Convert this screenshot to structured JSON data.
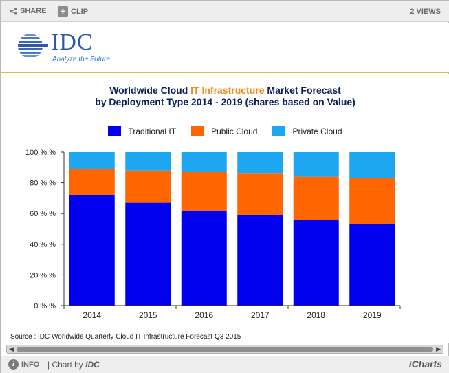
{
  "toolbar": {
    "share_label": "SHARE",
    "clip_label": "CLIP",
    "views_label": "2 VIEWS",
    "share_icon": "share-icon",
    "clip_icon": "plus-icon"
  },
  "logo": {
    "word": "IDC",
    "tagline": "Analyze the Future"
  },
  "chart": {
    "title_line1_pre": "Worldwide Cloud ",
    "title_line1_accent": "IT Infrastructure",
    "title_line1_post": " Market Forecast",
    "title_line2": "by Deployment Type  2014 - 2019 (shares based on Value)",
    "source": "Source : IDC Worldwide Quarterly Cloud IT Infrastructure Forecast Q3 2015"
  },
  "colors": {
    "traditional": "#0000ee",
    "public": "#ff6600",
    "private": "#1ea7f0",
    "title": "#0a1f5c",
    "title_accent": "#f08a1c"
  },
  "chart_data": {
    "type": "bar",
    "stacked": true,
    "title": "Worldwide Cloud IT Infrastructure Market Forecast by Deployment Type  2014 - 2019 (shares based on Value)",
    "categories": [
      "2014",
      "2015",
      "2016",
      "2017",
      "2018",
      "2019"
    ],
    "series": [
      {
        "name": "Traditional IT",
        "color": "#0000ee",
        "values": [
          72,
          67,
          62,
          59,
          56,
          53
        ]
      },
      {
        "name": "Public Cloud",
        "color": "#ff6600",
        "values": [
          17,
          21,
          25,
          27,
          28,
          30
        ]
      },
      {
        "name": "Private Cloud",
        "color": "#1ea7f0",
        "values": [
          11,
          12,
          13,
          14,
          16,
          17
        ]
      }
    ],
    "yticks": [
      "0 % %",
      "20 % %",
      "40 % %",
      "60 % %",
      "80 % %",
      "100 % %"
    ],
    "ylim": [
      0,
      100
    ],
    "legend_position": "top",
    "grid": false
  },
  "footer": {
    "info_label": "INFO",
    "chart_by_prefix": "| Chart by ",
    "chart_by_brand": "IDC",
    "brand": "iCharts"
  }
}
